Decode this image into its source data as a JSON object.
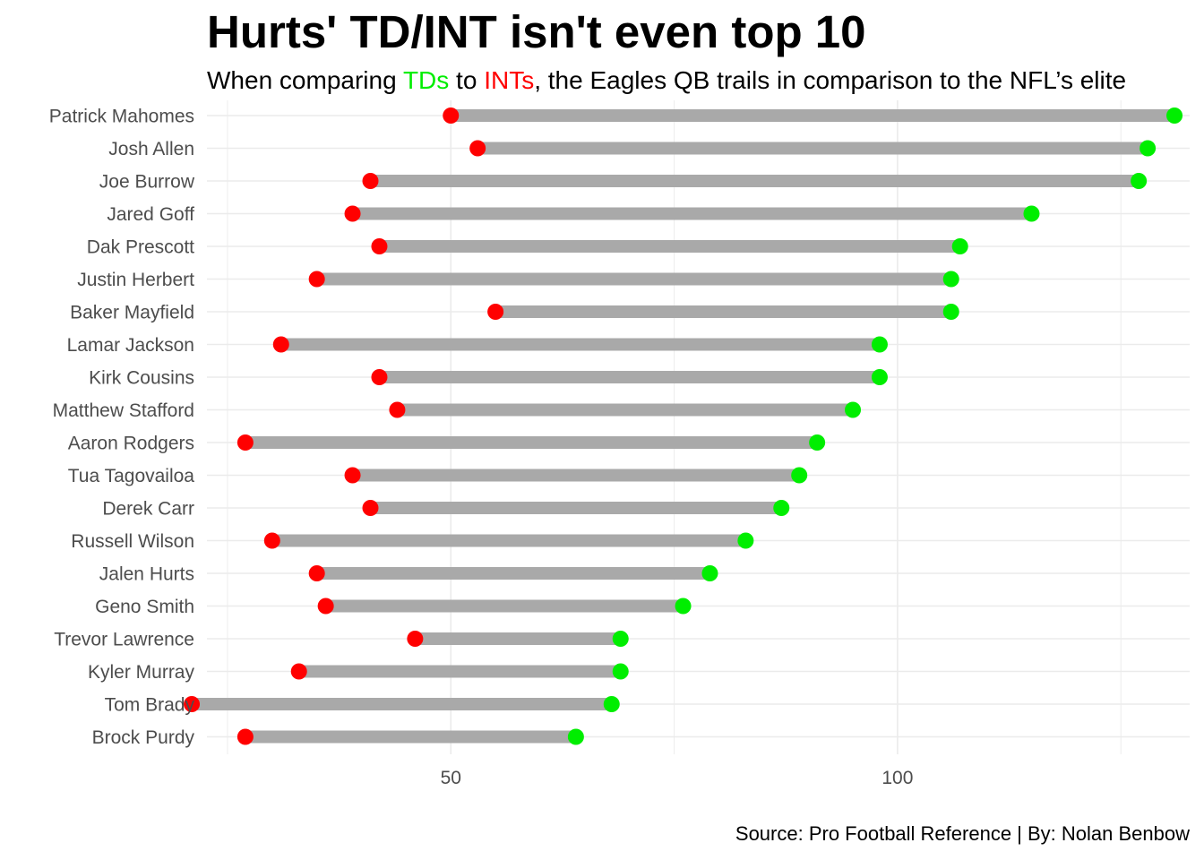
{
  "title": "Hurts' TD/INT isn't even top 10",
  "subtitle": {
    "prefix": "When comparing ",
    "td_word": "TDs",
    "middle": " to ",
    "int_word": "INTs",
    "suffix": ", the Eagles QB trails in comparison to the NFL’s elite"
  },
  "caption": "Source: Pro Football Reference | By: Nolan Benbow",
  "colors": {
    "td": "#00ee00",
    "int": "#ff0000",
    "segment": "#a9a9a9",
    "grid": "#ebebeb",
    "axis_text": "#4d4d4d"
  },
  "chart_data": {
    "type": "dumbbell",
    "title": "Hurts' TD/INT isn't even top 10",
    "xlabel": "",
    "ylabel": "",
    "xlim": [
      22.7,
      132.7
    ],
    "x_ticks": [
      50,
      100
    ],
    "x_tick_labels": [
      "50",
      "100"
    ],
    "grid": true,
    "legend": "none",
    "categories": [
      "Patrick Mahomes",
      "Josh Allen",
      "Joe Burrow",
      "Jared Goff",
      "Dak Prescott",
      "Justin Herbert",
      "Baker Mayfield",
      "Lamar Jackson",
      "Kirk Cousins",
      "Matthew Stafford",
      "Aaron Rodgers",
      "Tua Tagovailoa",
      "Derek Carr",
      "Russell Wilson",
      "Jalen Hurts",
      "Geno Smith",
      "Trevor Lawrence",
      "Kyler Murray",
      "Tom Brady",
      "Brock Purdy"
    ],
    "series": [
      {
        "name": "TDs",
        "values": [
          131,
          128,
          127,
          115,
          107,
          106,
          106,
          98,
          98,
          95,
          91,
          89,
          87,
          83,
          79,
          76,
          69,
          69,
          68,
          64
        ]
      },
      {
        "name": "INTs",
        "values": [
          50,
          53,
          41,
          39,
          42,
          35,
          55,
          31,
          42,
          44,
          27,
          39,
          41,
          30,
          35,
          36,
          46,
          33,
          21,
          27
        ]
      }
    ]
  }
}
